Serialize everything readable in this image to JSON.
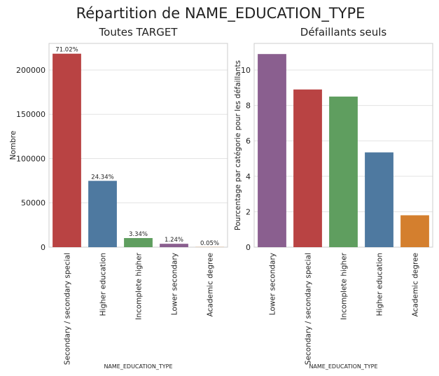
{
  "title": "Répartition de NAME_EDUCATION_TYPE",
  "chart_data": [
    {
      "type": "bar",
      "title": "Toutes TARGET",
      "x_label": "NAME_EDUCATION_TYPE",
      "y_label": "Nombre",
      "categories": [
        "Secondary / secondary special",
        "Higher education",
        "Incomplete higher",
        "Lower secondary",
        "Academic degree"
      ],
      "values": [
        218391,
        74863,
        10277,
        3816,
        164
      ],
      "annotations": [
        "71.02%",
        "24.34%",
        "3.34%",
        "1.24%",
        "0.05%"
      ],
      "colors": [
        "#b94343",
        "#4e79a0",
        "#5f9e5f",
        "#8a5f8f",
        "#d47f2e"
      ],
      "ylim": [
        0,
        230000
      ],
      "yticks": [
        0,
        50000,
        100000,
        150000,
        200000
      ],
      "grid": true
    },
    {
      "type": "bar",
      "title": "Défaillants seuls",
      "x_label": "NAME_EDUCATION_TYPE",
      "y_label": "Pourcentage par catégorie pour les défaillants",
      "categories": [
        "Lower secondary",
        "Secondary / secondary special",
        "Incomplete higher",
        "Higher education",
        "Academic degree"
      ],
      "values": [
        10.9,
        8.9,
        8.5,
        5.35,
        1.8
      ],
      "colors": [
        "#8a5f8f",
        "#b94343",
        "#5f9e5f",
        "#4e79a0",
        "#d47f2e"
      ],
      "ylim": [
        0,
        11.5
      ],
      "yticks": [
        0,
        2,
        4,
        6,
        8,
        10
      ],
      "grid": true
    }
  ]
}
